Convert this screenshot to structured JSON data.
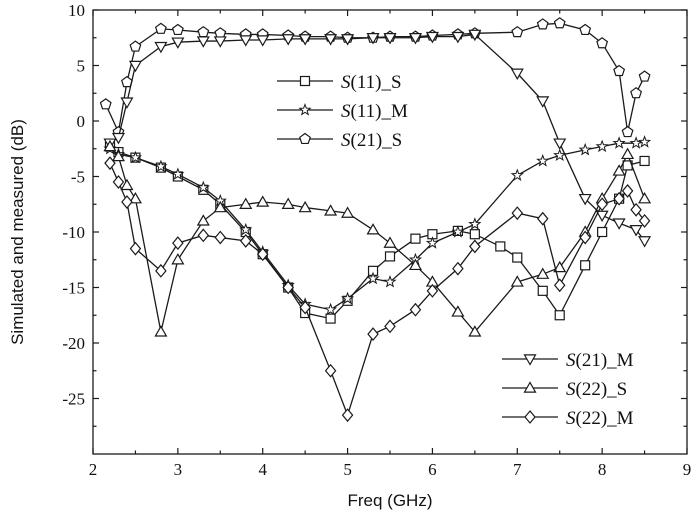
{
  "chart_data": {
    "type": "line",
    "title": "",
    "xlabel": "Freq (GHz)",
    "ylabel": "Simulated and measured (dB)",
    "xlim": [
      2,
      9
    ],
    "ylim": [
      -30,
      10
    ],
    "xticks": [
      2,
      3,
      4,
      5,
      6,
      7,
      8,
      9
    ],
    "yticks": [
      -25,
      -20,
      -15,
      -10,
      -5,
      0,
      5,
      10
    ],
    "grid": false,
    "legend_placement": [
      "upper-center",
      "lower-right"
    ],
    "series": [
      {
        "name": "S(11)_S",
        "prefix": "S",
        "suffix": "(11)_S",
        "marker": "square",
        "legend_group": 0,
        "x": [
          2.2,
          2.3,
          2.5,
          2.8,
          3.0,
          3.3,
          3.5,
          3.8,
          4.0,
          4.3,
          4.5,
          4.8,
          5.0,
          5.3,
          5.5,
          5.8,
          6.0,
          6.3,
          6.5,
          6.8,
          7.0,
          7.3,
          7.5,
          7.8,
          8.0,
          8.2,
          8.3,
          8.5
        ],
        "y": [
          -2.3,
          -2.8,
          -3.3,
          -4.2,
          -5.0,
          -6.2,
          -7.5,
          -10.0,
          -12.0,
          -15.0,
          -17.3,
          -17.8,
          -16.2,
          -13.5,
          -12.2,
          -10.6,
          -10.2,
          -9.9,
          -10.2,
          -11.3,
          -12.3,
          -15.3,
          -17.5,
          -13.0,
          -10.0,
          -7.0,
          -4.0,
          -3.6
        ]
      },
      {
        "name": "S(11)_M",
        "prefix": "S",
        "suffix": "(11)_M",
        "marker": "star",
        "legend_group": 0,
        "x": [
          2.2,
          2.3,
          2.5,
          2.8,
          3.0,
          3.3,
          3.5,
          3.8,
          4.0,
          4.3,
          4.5,
          4.8,
          5.0,
          5.3,
          5.5,
          5.8,
          6.0,
          6.3,
          6.5,
          7.0,
          7.3,
          7.5,
          7.8,
          8.0,
          8.2,
          8.4,
          8.5
        ],
        "y": [
          -2.5,
          -3.0,
          -3.3,
          -4.1,
          -4.8,
          -6.0,
          -7.2,
          -9.8,
          -11.8,
          -14.8,
          -16.5,
          -17.0,
          -16.0,
          -14.2,
          -14.5,
          -12.5,
          -11.0,
          -10.0,
          -9.3,
          -4.9,
          -3.6,
          -3.1,
          -2.6,
          -2.3,
          -2.0,
          -2.0,
          -1.9
        ]
      },
      {
        "name": "S(21)_S",
        "prefix": "S",
        "suffix": "(21)_S",
        "marker": "pentagon",
        "legend_group": 0,
        "x": [
          2.15,
          2.3,
          2.4,
          2.5,
          2.8,
          3.0,
          3.3,
          3.5,
          3.8,
          4.0,
          4.3,
          4.5,
          4.8,
          5.0,
          5.3,
          5.5,
          5.8,
          6.0,
          6.3,
          6.5,
          7.0,
          7.3,
          7.5,
          7.8,
          8.0,
          8.2,
          8.3,
          8.4,
          8.5
        ],
        "y": [
          1.5,
          -1.0,
          3.5,
          6.7,
          8.3,
          8.2,
          8.0,
          7.9,
          7.8,
          7.8,
          7.7,
          7.6,
          7.6,
          7.5,
          7.5,
          7.6,
          7.6,
          7.7,
          7.8,
          7.9,
          8.0,
          8.7,
          8.8,
          8.2,
          7.0,
          4.5,
          -1.0,
          2.5,
          4.0
        ]
      },
      {
        "name": "S(21)_M",
        "prefix": "S",
        "suffix": "(21)_M",
        "marker": "triangle-down",
        "legend_group": 1,
        "x": [
          2.2,
          2.3,
          2.4,
          2.5,
          2.8,
          3.0,
          3.3,
          3.5,
          3.8,
          4.0,
          4.3,
          4.5,
          4.8,
          5.0,
          5.3,
          5.5,
          5.8,
          6.0,
          6.3,
          6.5,
          7.0,
          7.3,
          7.5,
          7.8,
          8.0,
          8.2,
          8.4,
          8.5
        ],
        "y": [
          -2.0,
          -1.5,
          1.7,
          5.0,
          6.7,
          7.1,
          7.2,
          7.2,
          7.3,
          7.3,
          7.4,
          7.4,
          7.4,
          7.4,
          7.5,
          7.5,
          7.5,
          7.6,
          7.6,
          7.8,
          4.3,
          1.8,
          -2.0,
          -7.0,
          -8.5,
          -9.2,
          -9.8,
          -10.8
        ]
      },
      {
        "name": "S(22)_S",
        "prefix": "S",
        "suffix": "(22)_S",
        "marker": "triangle-up",
        "legend_group": 1,
        "x": [
          2.2,
          2.3,
          2.4,
          2.5,
          2.8,
          3.0,
          3.3,
          3.5,
          3.8,
          4.0,
          4.3,
          4.5,
          4.8,
          5.0,
          5.3,
          5.5,
          5.8,
          6.0,
          6.3,
          6.5,
          7.0,
          7.3,
          7.5,
          7.8,
          8.0,
          8.2,
          8.3,
          8.5
        ],
        "y": [
          -2.3,
          -3.2,
          -5.8,
          -7.0,
          -19.0,
          -12.5,
          -9.0,
          -7.8,
          -7.5,
          -7.3,
          -7.5,
          -7.8,
          -8.1,
          -8.3,
          -9.8,
          -11.0,
          -13.0,
          -14.5,
          -17.2,
          -19.0,
          -14.5,
          -13.8,
          -13.2,
          -10.0,
          -7.0,
          -4.5,
          -3.0,
          -7.0
        ]
      },
      {
        "name": "S(22)_M",
        "prefix": "S",
        "suffix": "(22)_M",
        "marker": "diamond",
        "legend_group": 1,
        "x": [
          2.2,
          2.3,
          2.4,
          2.5,
          2.8,
          3.0,
          3.3,
          3.5,
          3.8,
          4.0,
          4.3,
          4.5,
          4.8,
          5.0,
          5.3,
          5.5,
          5.8,
          6.0,
          6.3,
          6.5,
          7.0,
          7.3,
          7.5,
          7.8,
          8.0,
          8.2,
          8.3,
          8.4,
          8.5
        ],
        "y": [
          -3.8,
          -5.5,
          -7.3,
          -11.5,
          -13.5,
          -11.0,
          -10.3,
          -10.5,
          -10.8,
          -12.0,
          -15.0,
          -16.8,
          -22.5,
          -26.5,
          -19.2,
          -18.5,
          -17.0,
          -15.3,
          -13.3,
          -11.3,
          -8.3,
          -8.8,
          -14.8,
          -10.5,
          -7.5,
          -7.0,
          -6.3,
          -8.0,
          -9.0
        ]
      }
    ]
  }
}
